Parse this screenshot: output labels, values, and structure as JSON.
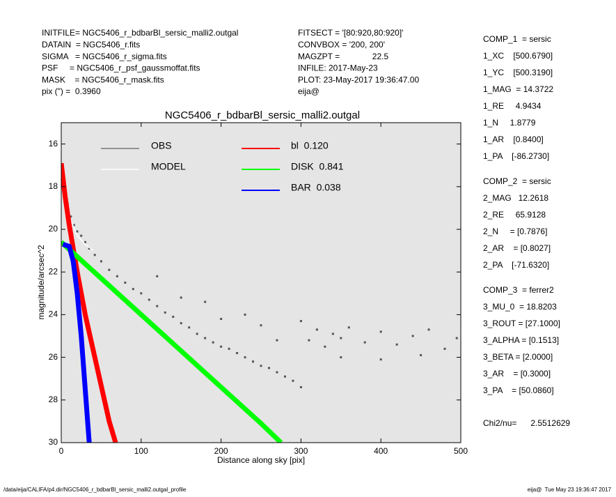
{
  "header": {
    "left": [
      "INITFILE= NGC5406_r_bdbarBl_sersic_malli2.outgal",
      "DATAIN  = NGC5406_r.fits",
      "SIGMA   = NGC5406_r_sigma.fits",
      "PSF     = NGC5406_r_psf_gaussmoffat.fits",
      "MASK    = NGC5406_r_mask.fits",
      "pix (\") =  0.3960"
    ],
    "middle": [
      "FITSECT = '[80:920,80:920]'",
      "CONVBOX = '200, 200'",
      "MAGZPT =              22.5",
      "INFILE: 2017-May-23",
      "PLOT: 23-May-2017 19:36:47.00",
      "eija@"
    ]
  },
  "components": [
    [
      "COMP_1  = sersic",
      "1_XC    [500.6790]",
      "1_YC    [500.3190]",
      "1_MAG  = 14.3722",
      "1_RE     4.9434",
      "1_N     1.8779",
      "1_AR    [0.8400]",
      "1_PA    [-86.2730]"
    ],
    [
      "COMP_2  = sersic",
      "2_MAG   12.2618",
      "2_RE     65.9128",
      "2_N     = [0.7876]",
      "2_AR    = [0.8027]",
      "2_PA    [-71.6320]"
    ],
    [
      "COMP_3  = ferrer2",
      "3_MU_0  = 18.8203",
      "3_ROUT = [27.1000]",
      "3_ALPHA = [0.1513]",
      "3_BETA = [2.0000]",
      "3_AR    = [0.3000]",
      "3_PA    = [50.0860]"
    ]
  ],
  "chi2": "Chi2/nu=      2.5512629",
  "footer": {
    "left": "/data/eija/CALIFA/p4.dir/NGC5406_r_bdbarBl_sersic_malli2.outgal_profile",
    "right": "eija@  Tue May 23 19:36:47 2017"
  },
  "chart_data": {
    "type": "profile",
    "title": "NGC5406_r_bdbarBl_sersic_malli2.outgal",
    "x_label": "Distance along sky [pix]",
    "y_label": "magnitude/arcsec^2",
    "xlim": [
      0,
      500
    ],
    "ylim": [
      30,
      15
    ],
    "xticks": [
      0,
      100,
      200,
      300,
      400,
      500
    ],
    "yticks": [
      16,
      18,
      20,
      22,
      24,
      26,
      28,
      30
    ],
    "series": [
      {
        "name": "OBS",
        "color": "#555555",
        "mode": "markers",
        "x": [
          2,
          5,
          8,
          12,
          16,
          20,
          25,
          30,
          35,
          42,
          50,
          60,
          70,
          80,
          90,
          100,
          110,
          120,
          130,
          140,
          150,
          160,
          170,
          180,
          190,
          200,
          210,
          220,
          230,
          240,
          250,
          260,
          270,
          280,
          290,
          300,
          310,
          320,
          330,
          340,
          350,
          360,
          380,
          400,
          420,
          440,
          460,
          480,
          495,
          150,
          200,
          250,
          300,
          350,
          400,
          450,
          120,
          180,
          230,
          270
        ],
        "y": [
          17.3,
          18.2,
          18.8,
          19.4,
          19.8,
          20.1,
          20.3,
          20.6,
          20.9,
          21.2,
          21.5,
          21.9,
          22.2,
          22.5,
          22.8,
          23.0,
          23.3,
          23.6,
          23.9,
          24.1,
          24.4,
          24.6,
          24.9,
          25.1,
          25.3,
          25.5,
          25.6,
          25.8,
          26.0,
          26.2,
          26.4,
          26.5,
          26.7,
          26.9,
          27.1,
          27.4,
          25.2,
          24.7,
          25.5,
          24.9,
          25.1,
          24.6,
          25.3,
          24.8,
          25.4,
          25.0,
          24.7,
          25.6,
          25.1,
          23.2,
          24.2,
          24.5,
          24.3,
          26.0,
          26.1,
          25.9,
          22.2,
          23.4,
          24.0,
          25.2
        ]
      },
      {
        "name": "MODEL",
        "color": "#ffffff",
        "mode": "lines",
        "x": [
          0,
          10,
          20,
          30,
          40
        ],
        "y": [
          17.4,
          19.4,
          20.3,
          20.7,
          21.0
        ]
      },
      {
        "name": "bl  0.120",
        "color": "#ff0000",
        "mode": "lines",
        "x": [
          0,
          5,
          10,
          20,
          30,
          45,
          60,
          68
        ],
        "y": [
          16.9,
          18.5,
          19.8,
          22.0,
          24.0,
          26.5,
          29.0,
          30.0
        ]
      },
      {
        "name": "DISK  0.841",
        "color": "#00ff00",
        "mode": "lines",
        "x": [
          0,
          50,
          100,
          150,
          200,
          250,
          275
        ],
        "y": [
          20.6,
          22.3,
          24.0,
          25.7,
          27.4,
          29.1,
          30.0
        ]
      },
      {
        "name": "BAR  0.038",
        "color": "#0000ff",
        "mode": "lines",
        "x": [
          2,
          10,
          15,
          20,
          25,
          30,
          35
        ],
        "y": [
          20.7,
          20.8,
          21.5,
          23.0,
          25.0,
          27.5,
          30.0
        ]
      }
    ]
  }
}
